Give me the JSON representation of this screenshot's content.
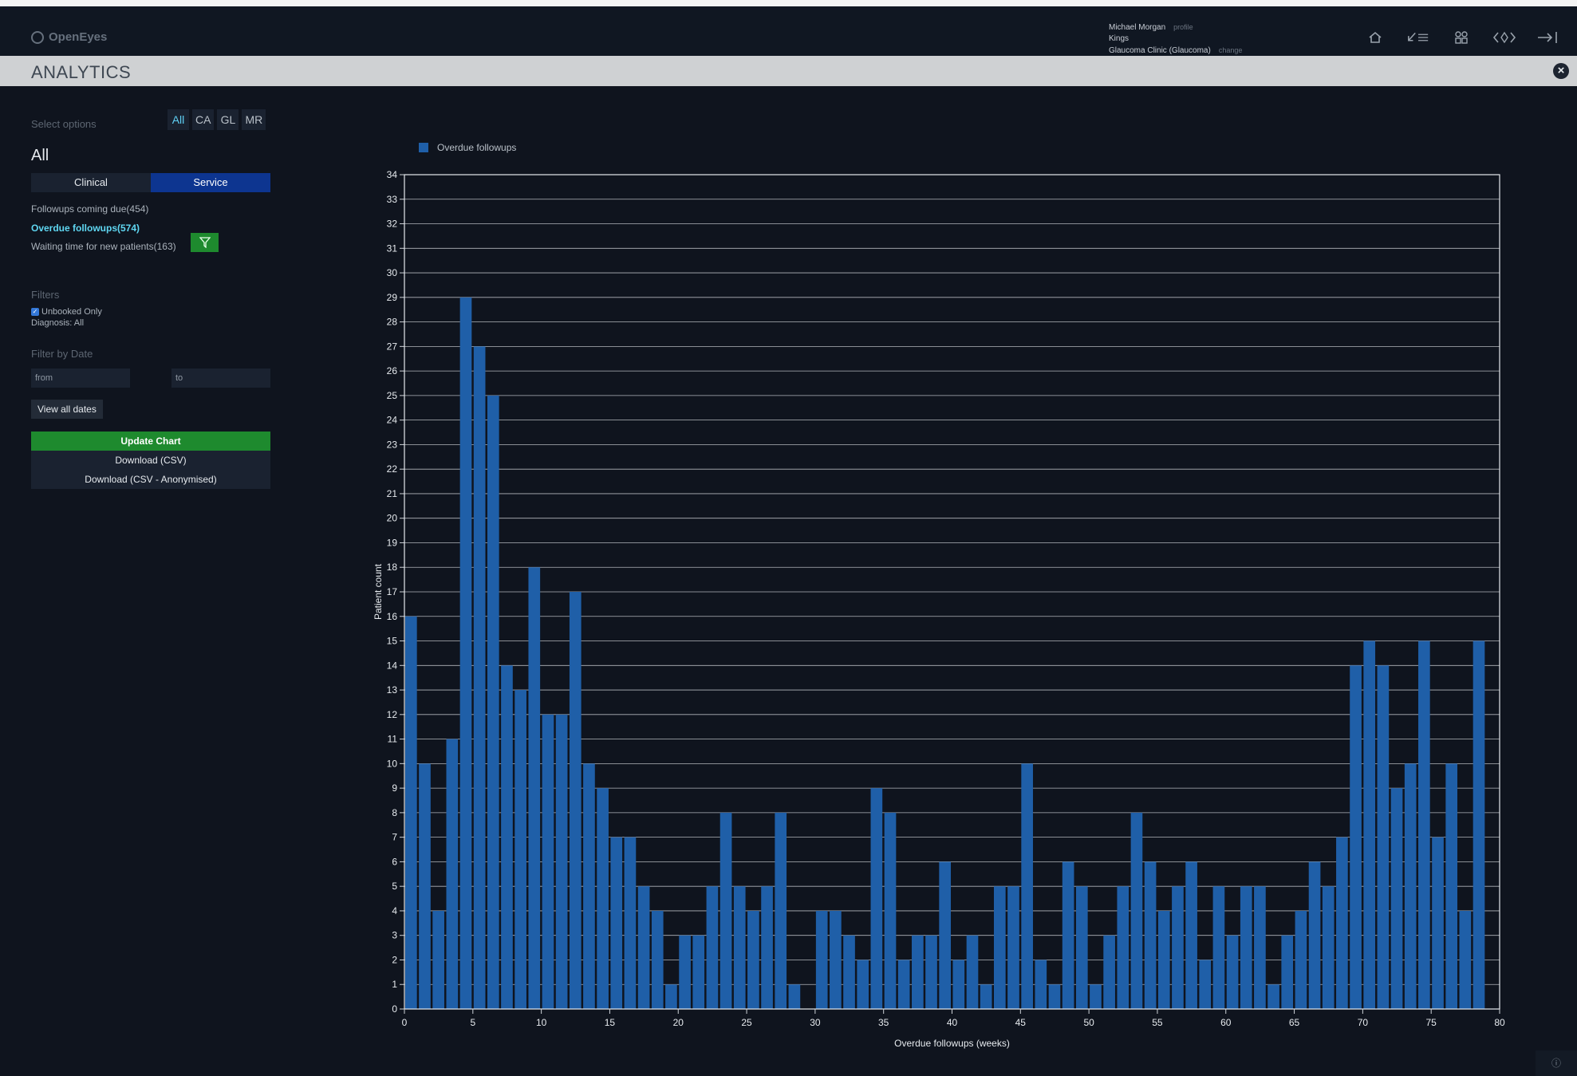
{
  "header": {
    "logo": "OpenEyes",
    "user_name": "Michael Morgan",
    "profile_link": "profile",
    "site": "Kings",
    "firm": "Glaucoma Clinic (Glaucoma)",
    "change_link": "change",
    "icons": [
      "home-icon",
      "worklist-icon",
      "apps-icon",
      "navigation-icon",
      "logout-icon"
    ]
  },
  "page": {
    "title": "ANALYTICS",
    "close_icon": "close-icon"
  },
  "sidebar": {
    "select_options_label": "Select options",
    "specialties": [
      "All",
      "CA",
      "GL",
      "MR"
    ],
    "active_specialty": "All",
    "heading": "All",
    "tabs": [
      "Clinical",
      "Service"
    ],
    "active_tab": "Service",
    "reports": [
      {
        "label": "Followups coming due(454)",
        "active": false
      },
      {
        "label": "Overdue followups(574)",
        "active": true
      },
      {
        "label": "Waiting time for new patients(163)",
        "active": false
      }
    ],
    "filters_label": "Filters",
    "unbooked_label": "Unbooked Only",
    "unbooked_checked": true,
    "diagnosis_label": "Diagnosis: All",
    "filter_by_date_label": "Filter by Date",
    "from_placeholder": "from",
    "to_placeholder": "to",
    "view_all_dates": "View all dates",
    "update_chart": "Update Chart",
    "download_csv": "Download (CSV)",
    "download_csv_anon": "Download (CSV - Anonymised)"
  },
  "chart_data": {
    "type": "bar",
    "series": [
      {
        "name": "Overdue followups",
        "color": "#1f5fa8",
        "x": [
          0,
          1,
          2,
          3,
          4,
          5,
          6,
          7,
          8,
          9,
          10,
          11,
          12,
          13,
          14,
          15,
          16,
          17,
          18,
          19,
          20,
          21,
          22,
          23,
          24,
          25,
          26,
          27,
          28,
          29,
          30,
          31,
          32,
          33,
          34,
          35,
          36,
          37,
          38,
          39,
          40,
          41,
          42,
          43,
          44,
          45,
          46,
          47,
          48,
          49,
          50,
          51,
          52,
          53,
          54,
          55,
          56,
          57,
          58,
          59,
          60,
          61,
          62,
          63,
          64,
          65,
          66,
          67,
          68,
          69,
          70,
          71,
          72,
          73,
          74,
          75,
          76,
          77,
          78
        ],
        "values": [
          16,
          10,
          4,
          11,
          29,
          27,
          25,
          14,
          13,
          18,
          12,
          12,
          17,
          10,
          9,
          7,
          7,
          5,
          4,
          1,
          3,
          3,
          5,
          8,
          5,
          4,
          5,
          8,
          1,
          0,
          4,
          4,
          3,
          2,
          9,
          8,
          2,
          3,
          3,
          6,
          2,
          3,
          1,
          5,
          5,
          10,
          2,
          1,
          6,
          5,
          1,
          3,
          5,
          8,
          6,
          4,
          5,
          6,
          2,
          5,
          3,
          5,
          5,
          1,
          3,
          4,
          6,
          5,
          7,
          14,
          15,
          14,
          9,
          10,
          15,
          7,
          10,
          4,
          15
        ]
      }
    ],
    "xlabel": "Overdue followups (weeks)",
    "ylabel": "Patient count",
    "xlim": [
      0,
      80
    ],
    "ylim": [
      0,
      34
    ],
    "xticks": [
      0,
      5,
      10,
      15,
      20,
      25,
      30,
      35,
      40,
      45,
      50,
      55,
      60,
      65,
      70,
      75,
      80
    ],
    "yticks": [
      0,
      1,
      2,
      3,
      4,
      5,
      6,
      7,
      8,
      9,
      10,
      11,
      12,
      13,
      14,
      15,
      16,
      17,
      18,
      19,
      20,
      21,
      22,
      23,
      24,
      25,
      26,
      27,
      28,
      29,
      30,
      31,
      32,
      33,
      34
    ],
    "grid": "horizontal",
    "legend": "top-left"
  },
  "footer": {
    "info_icon": "info-icon"
  }
}
